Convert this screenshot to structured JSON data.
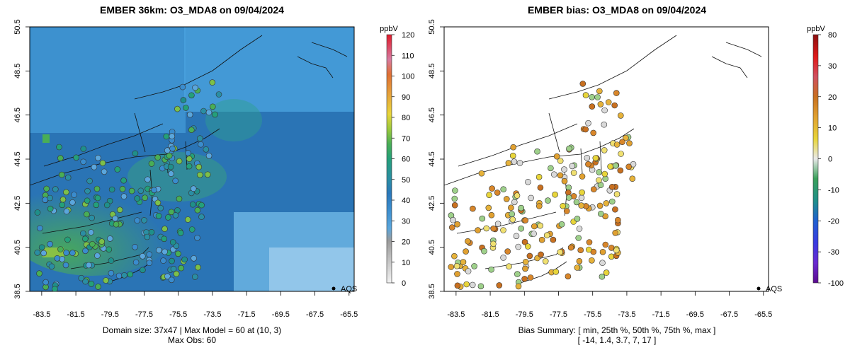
{
  "chart_data": [
    {
      "type": "heatmap",
      "title": "EMBER 36km: O3_MDA8 on 09/04/2024",
      "x_ticks": [
        "-83.5",
        "-81.5",
        "-79.5",
        "-77.5",
        "-75.5",
        "-73.5",
        "-71.5",
        "-69.5",
        "-67.5",
        "-65.5"
      ],
      "y_ticks": [
        "38.5",
        "40.5",
        "42.5",
        "44.5",
        "46.5",
        "48.5",
        "50.5"
      ],
      "xlim": [
        -84.2,
        -65.2
      ],
      "ylim": [
        38.5,
        50.5
      ],
      "colorbar": {
        "label": "ppbV",
        "ticks": [
          "0",
          "10",
          "20",
          "30",
          "40",
          "50",
          "60",
          "70",
          "80",
          "90",
          "100",
          "110",
          "120"
        ],
        "range": [
          0,
          120
        ],
        "colors": [
          "#f2f2f2",
          "#c8c8c8",
          "#9b9b9b",
          "#4a9ad6",
          "#2a79c0",
          "#1f8fa6",
          "#1fa07a",
          "#3aad55",
          "#8cc63f",
          "#e8d53a",
          "#e7a23a",
          "#e48a34",
          "#d9603a",
          "#d77aa0",
          "#e01a2a"
        ]
      },
      "legend": "AQS",
      "caption_line1": "Domain size: 37x47 | Max Model = 60 at (10, 3)",
      "caption_line2": "Max Obs: 60"
    },
    {
      "type": "scatter",
      "title": "EMBER bias: O3_MDA8 on 09/04/2024",
      "x_ticks": [
        "-83.5",
        "-81.5",
        "-79.5",
        "-77.5",
        "-75.5",
        "-73.5",
        "-71.5",
        "-69.5",
        "-67.5",
        "-65.5"
      ],
      "y_ticks": [
        "38.5",
        "40.5",
        "42.5",
        "44.5",
        "46.5",
        "48.5",
        "50.5"
      ],
      "xlim": [
        -84.2,
        -65.2
      ],
      "ylim": [
        38.5,
        50.5
      ],
      "colorbar": {
        "label": "ppbV",
        "ticks": [
          "-100",
          "-30",
          "-20",
          "-10",
          "0",
          "10",
          "20",
          "30",
          "80"
        ],
        "colors": [
          "#6a0dad",
          "#3b2fd6",
          "#1f5fd6",
          "#1f8f8a",
          "#3aa05a",
          "#e8e8e8",
          "#e8d53a",
          "#e0a030",
          "#c87020",
          "#d04040",
          "#e01a1a",
          "#b01010"
        ]
      },
      "legend": "AQS",
      "caption_line1": "Bias Summary: [ min, 25th %, 50th %, 75th %, max ]",
      "caption_line2": "[ -14,   1.4,   3.7,   7,   17 ]"
    }
  ]
}
